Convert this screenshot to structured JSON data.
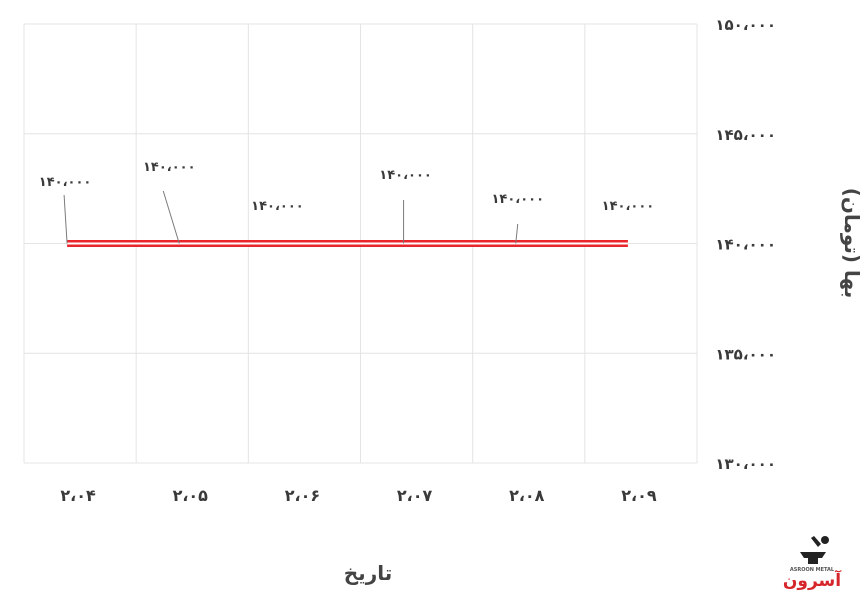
{
  "chart_data": {
    "type": "line",
    "title": "",
    "xlabel": "تاریخ",
    "ylabel": "بها (تومان)",
    "categories": [
      "۲،۰۴",
      "۲،۰۵",
      "۲،۰۶",
      "۲،۰۷",
      "۲،۰۸",
      "۲،۰۹"
    ],
    "values": [
      140000,
      140000,
      140000,
      140000,
      140000,
      140000
    ],
    "data_labels": [
      "۱۴۰،۰۰۰",
      "۱۴۰،۰۰۰",
      "۱۴۰،۰۰۰",
      "۱۴۰،۰۰۰",
      "۱۴۰،۰۰۰",
      "۱۴۰،۰۰۰"
    ],
    "ylim": [
      130000,
      150000
    ],
    "yticks": [
      150000,
      145000,
      140000,
      135000,
      130000
    ],
    "ytick_labels": [
      "۱۵۰،۰۰۰",
      "۱۴۵،۰۰۰",
      "۱۴۰،۰۰۰",
      "۱۳۵،۰۰۰",
      "۱۳۰،۰۰۰"
    ],
    "y_axis_side": "right",
    "grid": true,
    "line_color": "#e8262c",
    "grid_color": "#e4e4e4"
  },
  "logo": {
    "brand": "آسرون",
    "sub": "ASROON METAL",
    "color": "#d7262b"
  }
}
